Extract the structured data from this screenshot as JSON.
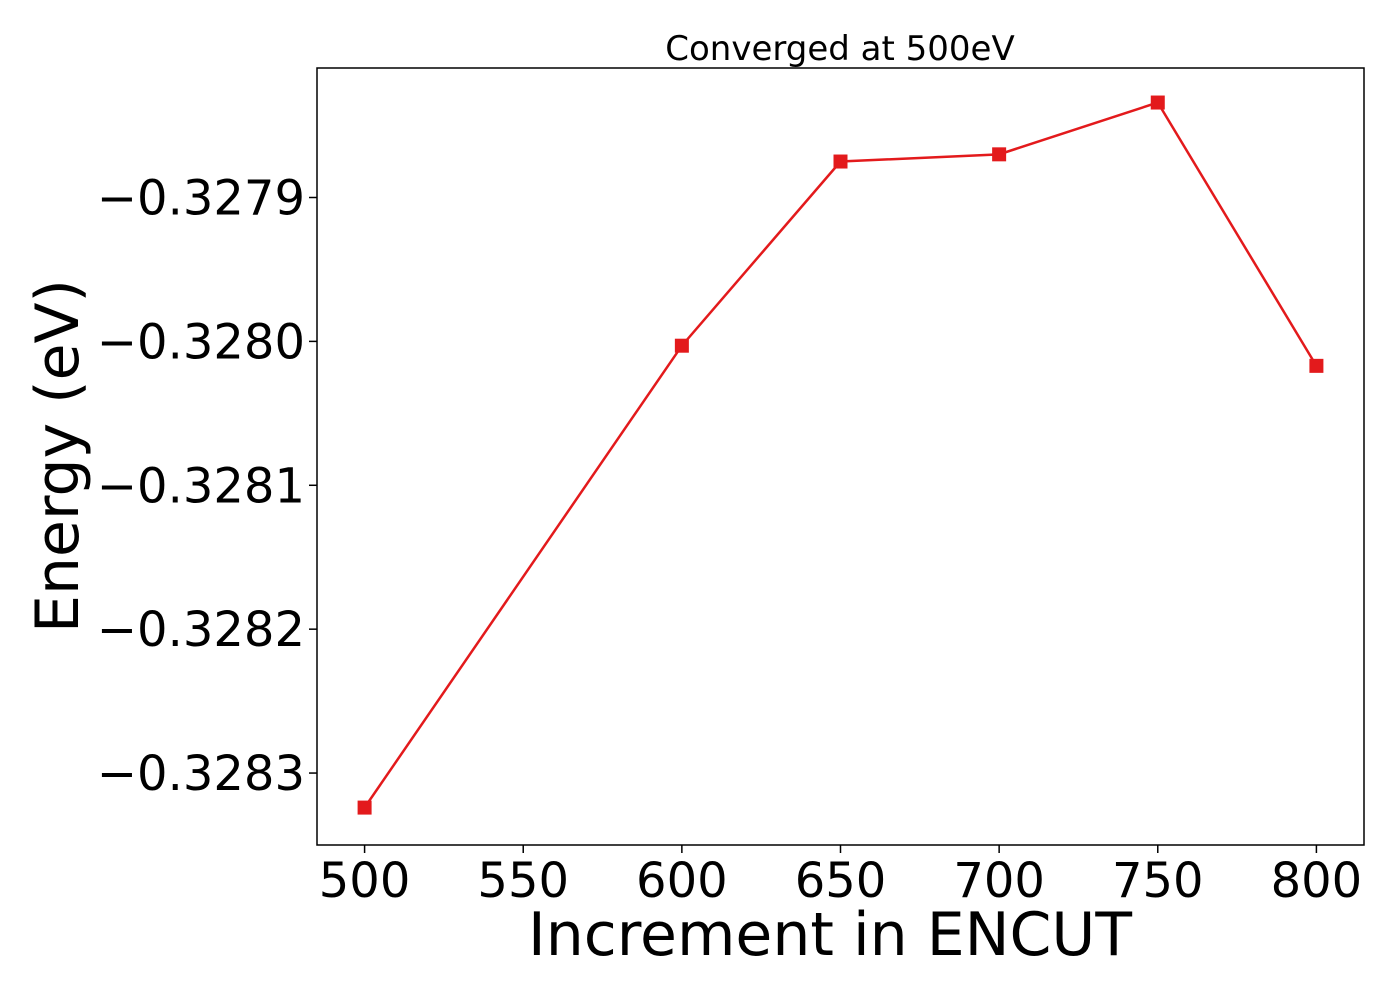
{
  "chart_data": {
    "type": "line",
    "title": "Converged at 500eV",
    "xlabel": "Increment in ENCUT",
    "ylabel": "Energy (eV)",
    "x": [
      500,
      600,
      650,
      700,
      750,
      800
    ],
    "series": [
      {
        "values": [
          -0.328324,
          -0.328003,
          -0.327875,
          -0.32787,
          -0.327834,
          -0.328017
        ],
        "color": "#e31a1c",
        "marker": "square"
      }
    ],
    "xlim": [
      485,
      815
    ],
    "ylim": [
      -0.32835,
      -0.32781
    ],
    "xticks": [
      500,
      550,
      600,
      650,
      700,
      750,
      800
    ],
    "xtick_labels": [
      "500",
      "550",
      "600",
      "650",
      "700",
      "750",
      "800"
    ],
    "yticks": [
      -0.3279,
      -0.328,
      -0.3281,
      -0.3282,
      -0.3283
    ],
    "ytick_labels": [
      "−0.3279",
      "−0.3280",
      "−0.3281",
      "−0.3282",
      "−0.3283"
    ],
    "grid": false,
    "legend": "none"
  }
}
